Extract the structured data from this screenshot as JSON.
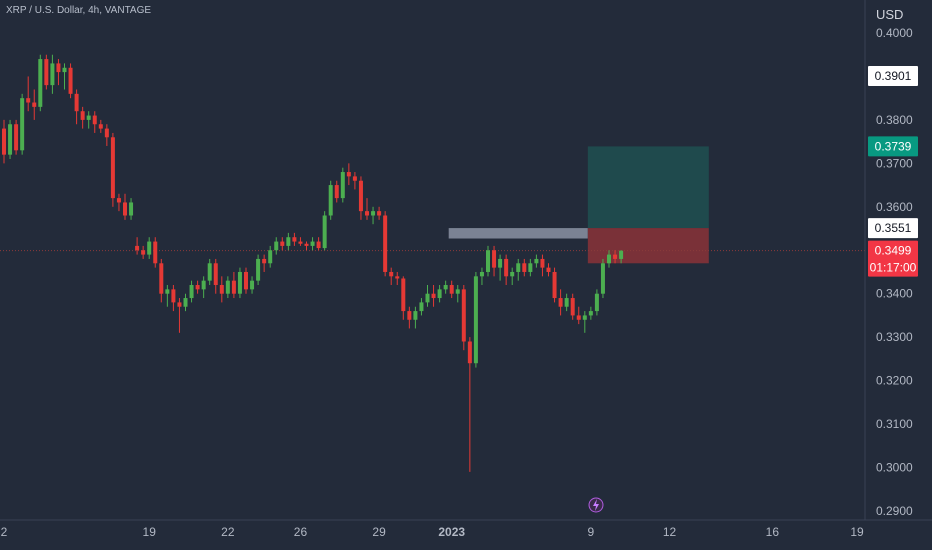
{
  "header": {
    "title": "XRP / U.S. Dollar, 4h, VANTAGE"
  },
  "axis": {
    "currency": "USD"
  },
  "colors": {
    "background": "#232b3a",
    "up": "#26a69a",
    "bull": "#4caf50",
    "bear": "#e53935",
    "target_zone": "#1f4a4d",
    "stop_zone": "#7a3138",
    "resistance_box": "#8b93a5",
    "price_line": "#8b3b3b"
  },
  "price_tags": [
    {
      "label": "0.3901",
      "value": 0.3901,
      "bg": "#ffffff",
      "fg": "#131722"
    },
    {
      "label": "0.3739",
      "value": 0.3739,
      "bg": "#089981",
      "fg": "#ffffff"
    },
    {
      "label": "0.3551",
      "value": 0.3551,
      "bg": "#ffffff",
      "fg": "#131722"
    },
    {
      "label": "0.3499",
      "value": 0.3499,
      "bg": "#f23645",
      "fg": "#ffffff"
    }
  ],
  "countdown": "01:17:00",
  "event_icon": "lightning-icon",
  "chart_data": {
    "type": "candlestick",
    "title": "XRP / U.S. Dollar, 4h, VANTAGE",
    "ylim": [
      0.29,
      0.4
    ],
    "y_ticks": [
      "0.4000",
      "0.3800",
      "0.3700",
      "0.3600",
      "0.3400",
      "0.3300",
      "0.3200",
      "0.3100",
      "0.3000",
      "0.2900"
    ],
    "x_ticks": [
      {
        "label": "2",
        "index": 0
      },
      {
        "label": "19",
        "index": 24
      },
      {
        "label": "22",
        "index": 37
      },
      {
        "label": "26",
        "index": 49
      },
      {
        "label": "29",
        "index": 62
      },
      {
        "label": "2023",
        "index": 74,
        "bold": true
      },
      {
        "label": "9",
        "index": 97
      },
      {
        "label": "12",
        "index": 110
      },
      {
        "label": "16",
        "index": 127
      },
      {
        "label": "19",
        "index": 141
      }
    ],
    "candles": [
      [
        0.378,
        0.38,
        0.37,
        0.372
      ],
      [
        0.372,
        0.38,
        0.371,
        0.379
      ],
      [
        0.379,
        0.38,
        0.372,
        0.373
      ],
      [
        0.373,
        0.386,
        0.372,
        0.385
      ],
      [
        0.385,
        0.39,
        0.382,
        0.384
      ],
      [
        0.384,
        0.387,
        0.38,
        0.383
      ],
      [
        0.383,
        0.395,
        0.382,
        0.394
      ],
      [
        0.394,
        0.395,
        0.387,
        0.388
      ],
      [
        0.388,
        0.395,
        0.386,
        0.393
      ],
      [
        0.393,
        0.394,
        0.388,
        0.391
      ],
      [
        0.391,
        0.393,
        0.387,
        0.392
      ],
      [
        0.392,
        0.393,
        0.385,
        0.386
      ],
      [
        0.386,
        0.387,
        0.379,
        0.382
      ],
      [
        0.382,
        0.383,
        0.378,
        0.38
      ],
      [
        0.38,
        0.382,
        0.378,
        0.381
      ],
      [
        0.381,
        0.382,
        0.377,
        0.379
      ],
      [
        0.379,
        0.38,
        0.377,
        0.378
      ],
      [
        0.378,
        0.379,
        0.374,
        0.376
      ],
      [
        0.376,
        0.377,
        0.36,
        0.362
      ],
      [
        0.362,
        0.363,
        0.359,
        0.361
      ],
      [
        0.361,
        0.363,
        0.357,
        0.358
      ],
      [
        0.358,
        0.362,
        0.357,
        0.361
      ],
      [
        0.351,
        0.353,
        0.349,
        0.35
      ],
      [
        0.35,
        0.351,
        0.348,
        0.349
      ],
      [
        0.349,
        0.353,
        0.348,
        0.352
      ],
      [
        0.352,
        0.353,
        0.346,
        0.347
      ],
      [
        0.347,
        0.348,
        0.338,
        0.34
      ],
      [
        0.34,
        0.342,
        0.337,
        0.341
      ],
      [
        0.341,
        0.342,
        0.336,
        0.338
      ],
      [
        0.338,
        0.339,
        0.331,
        0.337
      ],
      [
        0.337,
        0.34,
        0.336,
        0.339
      ],
      [
        0.339,
        0.343,
        0.338,
        0.342
      ],
      [
        0.342,
        0.343,
        0.34,
        0.341
      ],
      [
        0.341,
        0.344,
        0.339,
        0.343
      ],
      [
        0.343,
        0.348,
        0.342,
        0.347
      ],
      [
        0.347,
        0.348,
        0.34,
        0.342
      ],
      [
        0.342,
        0.344,
        0.338,
        0.34
      ],
      [
        0.34,
        0.344,
        0.339,
        0.343
      ],
      [
        0.343,
        0.345,
        0.339,
        0.34
      ],
      [
        0.34,
        0.346,
        0.339,
        0.345
      ],
      [
        0.345,
        0.346,
        0.34,
        0.341
      ],
      [
        0.341,
        0.344,
        0.34,
        0.343
      ],
      [
        0.343,
        0.349,
        0.342,
        0.348
      ],
      [
        0.348,
        0.349,
        0.345,
        0.347
      ],
      [
        0.347,
        0.351,
        0.346,
        0.35
      ],
      [
        0.35,
        0.353,
        0.349,
        0.352
      ],
      [
        0.352,
        0.353,
        0.35,
        0.351
      ],
      [
        0.351,
        0.354,
        0.35,
        0.353
      ],
      [
        0.353,
        0.354,
        0.351,
        0.352
      ],
      [
        0.352,
        0.353,
        0.351,
        0.3515
      ],
      [
        0.3515,
        0.352,
        0.35,
        0.351
      ],
      [
        0.351,
        0.353,
        0.35,
        0.352
      ],
      [
        0.352,
        0.353,
        0.35,
        0.3505
      ],
      [
        0.3505,
        0.359,
        0.35,
        0.358
      ],
      [
        0.358,
        0.366,
        0.357,
        0.365
      ],
      [
        0.365,
        0.366,
        0.361,
        0.362
      ],
      [
        0.362,
        0.369,
        0.361,
        0.368
      ],
      [
        0.368,
        0.37,
        0.365,
        0.367
      ],
      [
        0.367,
        0.368,
        0.364,
        0.366
      ],
      [
        0.366,
        0.367,
        0.357,
        0.359
      ],
      [
        0.359,
        0.362,
        0.357,
        0.358
      ],
      [
        0.358,
        0.36,
        0.356,
        0.359
      ],
      [
        0.359,
        0.36,
        0.357,
        0.358
      ],
      [
        0.358,
        0.359,
        0.344,
        0.345
      ],
      [
        0.345,
        0.346,
        0.342,
        0.344
      ],
      [
        0.344,
        0.345,
        0.342,
        0.3435
      ],
      [
        0.3435,
        0.344,
        0.334,
        0.336
      ],
      [
        0.336,
        0.337,
        0.332,
        0.334
      ],
      [
        0.334,
        0.337,
        0.332,
        0.336
      ],
      [
        0.336,
        0.339,
        0.335,
        0.338
      ],
      [
        0.338,
        0.342,
        0.337,
        0.34
      ],
      [
        0.34,
        0.342,
        0.337,
        0.339
      ],
      [
        0.339,
        0.342,
        0.338,
        0.341
      ],
      [
        0.341,
        0.343,
        0.34,
        0.342
      ],
      [
        0.342,
        0.343,
        0.339,
        0.34
      ],
      [
        0.34,
        0.342,
        0.338,
        0.341
      ],
      [
        0.341,
        0.342,
        0.327,
        0.329
      ],
      [
        0.329,
        0.33,
        0.299,
        0.324
      ],
      [
        0.324,
        0.345,
        0.323,
        0.344
      ],
      [
        0.344,
        0.346,
        0.342,
        0.345
      ],
      [
        0.345,
        0.351,
        0.344,
        0.35
      ],
      [
        0.35,
        0.351,
        0.344,
        0.346
      ],
      [
        0.346,
        0.349,
        0.343,
        0.348
      ],
      [
        0.348,
        0.349,
        0.342,
        0.344
      ],
      [
        0.344,
        0.346,
        0.342,
        0.345
      ],
      [
        0.345,
        0.348,
        0.343,
        0.347
      ],
      [
        0.347,
        0.348,
        0.344,
        0.345
      ],
      [
        0.345,
        0.348,
        0.344,
        0.347
      ],
      [
        0.347,
        0.349,
        0.346,
        0.348
      ],
      [
        0.348,
        0.349,
        0.344,
        0.346
      ],
      [
        0.346,
        0.347,
        0.344,
        0.345
      ],
      [
        0.345,
        0.346,
        0.338,
        0.339
      ],
      [
        0.339,
        0.341,
        0.335,
        0.337
      ],
      [
        0.337,
        0.34,
        0.336,
        0.339
      ],
      [
        0.339,
        0.34,
        0.334,
        0.335
      ],
      [
        0.335,
        0.337,
        0.333,
        0.334
      ],
      [
        0.334,
        0.336,
        0.331,
        0.335
      ],
      [
        0.335,
        0.337,
        0.334,
        0.336
      ],
      [
        0.336,
        0.341,
        0.335,
        0.34
      ],
      [
        0.34,
        0.348,
        0.339,
        0.347
      ],
      [
        0.347,
        0.35,
        0.346,
        0.349
      ],
      [
        0.349,
        0.35,
        0.347,
        0.348
      ],
      [
        0.348,
        0.35,
        0.347,
        0.3499
      ]
    ],
    "annotations": [
      {
        "type": "resistance_zone",
        "from_index": 74,
        "to_index": 96,
        "low": 0.3527,
        "high": 0.3551
      },
      {
        "type": "target_zone",
        "from_index": 97,
        "to_index": 116,
        "low": 0.3551,
        "high": 0.3739
      },
      {
        "type": "stop_zone",
        "from_index": 97,
        "to_index": 116,
        "low": 0.347,
        "high": 0.3551
      }
    ],
    "last_price": 0.3499,
    "grid": false
  }
}
